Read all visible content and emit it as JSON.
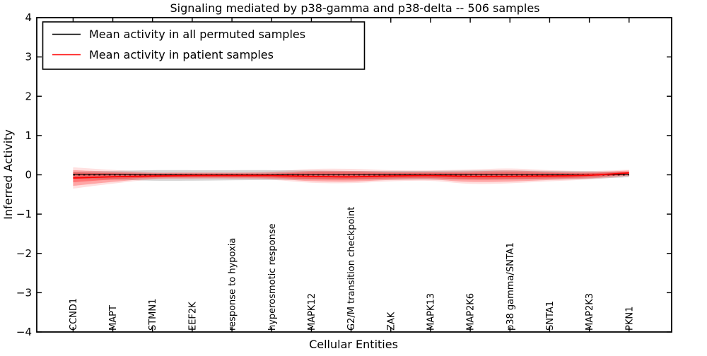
{
  "chart": {
    "title": "Signaling mediated by p38-gamma and p38-delta -- 506 samples",
    "xlabel": "Cellular Entities",
    "ylabel": "Inferred Activity"
  },
  "legend": {
    "items": [
      {
        "label": "Mean activity in all permuted samples",
        "color": "#000000"
      },
      {
        "label": "Mean activity in patient samples",
        "color": "#ff0000"
      }
    ]
  },
  "colors": {
    "patient_line": "#ff0000",
    "patient_band": "#ff0000",
    "permuted_line": "#000000",
    "permuted_band": "#888888",
    "zero_line": "#000000"
  },
  "chart_data": {
    "type": "line",
    "title": "Signaling mediated by p38-gamma and p38-delta -- 506 samples",
    "xlabel": "Cellular Entities",
    "ylabel": "Inferred Activity",
    "ylim": [
      -4,
      4
    ],
    "grid": false,
    "legend_position": "upper left",
    "yticks": [
      {
        "v": -4,
        "label": "−4"
      },
      {
        "v": -3,
        "label": "−3"
      },
      {
        "v": -2,
        "label": "−2"
      },
      {
        "v": -1,
        "label": "−1"
      },
      {
        "v": 0,
        "label": "0"
      },
      {
        "v": 1,
        "label": "1"
      },
      {
        "v": 2,
        "label": "2"
      },
      {
        "v": 3,
        "label": "3"
      },
      {
        "v": 4,
        "label": "4"
      }
    ],
    "categories": [
      "CCND1",
      "MAPT",
      "STMN1",
      "EEF2K",
      "response to hypoxia",
      "hyperosmotic response",
      "MAPK12",
      "G2/M transition checkpoint",
      "ZAK",
      "MAPK13",
      "MAP2K6",
      "p38 gamma/SNTA1",
      "SNTA1",
      "MAP2K3",
      "PKN1"
    ],
    "series": [
      {
        "name": "Mean activity in all permuted samples",
        "values": [
          0.01,
          0.01,
          0.0,
          0.0,
          0.0,
          0.0,
          0.0,
          0.0,
          0.0,
          0.0,
          0.0,
          0.0,
          0.0,
          0.0,
          0.01
        ]
      },
      {
        "name": "Mean activity in patient samples",
        "values": [
          -0.08,
          -0.05,
          -0.03,
          -0.02,
          -0.02,
          -0.02,
          -0.04,
          -0.05,
          -0.03,
          -0.02,
          -0.04,
          -0.04,
          -0.03,
          -0.01,
          0.05
        ]
      }
    ],
    "bands": [
      {
        "name": "permuted-range",
        "upper": [
          0.08,
          0.1,
          0.12,
          0.12,
          0.12,
          0.12,
          0.11,
          0.1,
          0.1,
          0.1,
          0.11,
          0.11,
          0.1,
          0.09,
          0.07
        ],
        "lower": [
          -0.1,
          -0.12,
          -0.15,
          -0.15,
          -0.14,
          -0.13,
          -0.12,
          -0.12,
          -0.12,
          -0.12,
          -0.12,
          -0.12,
          -0.11,
          -0.1,
          -0.06
        ]
      },
      {
        "name": "patient-range-outer",
        "upper": [
          0.12,
          0.08,
          0.05,
          0.05,
          0.05,
          0.06,
          0.1,
          0.1,
          0.08,
          0.08,
          0.09,
          0.11,
          0.08,
          0.07,
          0.11
        ],
        "lower": [
          -0.28,
          -0.18,
          -0.1,
          -0.09,
          -0.09,
          -0.1,
          -0.16,
          -0.17,
          -0.13,
          -0.12,
          -0.18,
          -0.17,
          -0.13,
          -0.09,
          -0.02
        ]
      },
      {
        "name": "patient-range-inner",
        "upper": [
          0.06,
          0.04,
          0.03,
          0.03,
          0.03,
          0.03,
          0.06,
          0.06,
          0.05,
          0.05,
          0.05,
          0.06,
          0.05,
          0.04,
          0.08
        ],
        "lower": [
          -0.19,
          -0.12,
          -0.07,
          -0.06,
          -0.06,
          -0.07,
          -0.11,
          -0.12,
          -0.09,
          -0.08,
          -0.12,
          -0.11,
          -0.09,
          -0.06,
          0.01
        ]
      }
    ],
    "zero_line": {
      "value": 0,
      "style": "dotted"
    }
  }
}
